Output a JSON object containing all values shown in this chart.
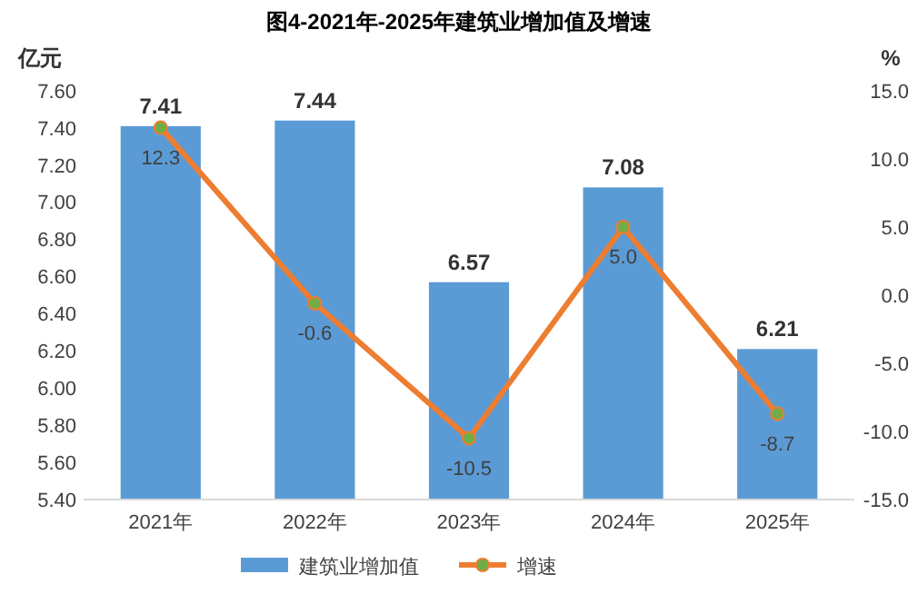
{
  "chart_data": {
    "type": "bar",
    "title": "图4-2021年-2025年建筑业增加值及增速",
    "ylabel": "亿元",
    "y2label": "%",
    "categories": [
      "2021年",
      "2022年",
      "2023年",
      "2024年",
      "2025年"
    ],
    "series": [
      {
        "name": "建筑业增加值",
        "color": "#5b9bd5",
        "values": [
          7.41,
          7.44,
          6.57,
          7.08,
          6.21
        ]
      },
      {
        "name": "增速",
        "type": "line",
        "axis": "y2",
        "color": "#ed7d31",
        "colors": [
          "#70ad47",
          "#70ad47",
          "#70ad47",
          "#70ad47",
          "#70ad47"
        ],
        "values": [
          12.3,
          -0.6,
          -10.5,
          5.0,
          -8.7
        ],
        "value_labels": [
          "12.3",
          "-0.6",
          "-10.5",
          "5.0",
          "-8.7"
        ]
      }
    ],
    "ylim": [
      5.4,
      7.6
    ],
    "yticks": [
      {
        "value": 5.4,
        "label": "5.40"
      },
      {
        "value": 5.6,
        "label": "5.60"
      },
      {
        "value": 5.8,
        "label": "5.80"
      },
      {
        "value": 6.0,
        "label": "6.00"
      },
      {
        "value": 6.2,
        "label": "6.20"
      },
      {
        "value": 6.4,
        "label": "6.40"
      },
      {
        "value": 6.6,
        "label": "6.60"
      },
      {
        "value": 6.8,
        "label": "6.80"
      },
      {
        "value": 7.0,
        "label": "7.00"
      },
      {
        "value": 7.2,
        "label": "7.20"
      },
      {
        "value": 7.4,
        "label": "7.40"
      },
      {
        "value": 7.6,
        "label": "7.60"
      }
    ],
    "y2lim": [
      -15,
      15
    ],
    "y2ticks": [
      {
        "value": -15,
        "label": "-15.0"
      },
      {
        "value": -10,
        "label": "-10.0"
      },
      {
        "value": -5,
        "label": "-5.0"
      },
      {
        "value": 0,
        "label": "0.0"
      },
      {
        "value": 5,
        "label": "5.0"
      },
      {
        "value": 10,
        "label": "10.0"
      },
      {
        "value": 15,
        "label": "15.0"
      }
    ],
    "data_labels": true,
    "legend": "bottom",
    "marker": "circle",
    "line_style": "solid"
  }
}
